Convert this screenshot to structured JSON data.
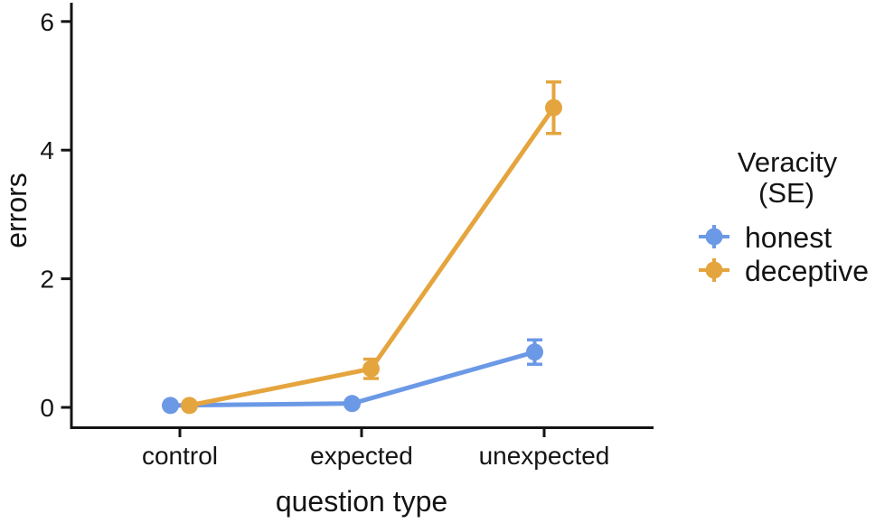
{
  "chart_data": {
    "type": "line",
    "title": "",
    "xlabel": "question type",
    "ylabel": "errors",
    "categories": [
      "control",
      "expected",
      "unexpected"
    ],
    "series": [
      {
        "name": "honest",
        "color": "#6B99E6",
        "values": [
          0.03,
          0.06,
          0.86
        ],
        "se": [
          0.02,
          0.04,
          0.19
        ]
      },
      {
        "name": "deceptive",
        "color": "#E5A53E",
        "values": [
          0.03,
          0.6,
          4.66
        ],
        "se": [
          0.02,
          0.15,
          0.4
        ]
      }
    ],
    "yticks": [
      0,
      2,
      4,
      6
    ],
    "ylim": [
      -0.3,
      6.3
    ],
    "grid": false,
    "error_bars": "SE",
    "legend": {
      "title": "Veracity",
      "subtitle": "(SE)",
      "position": "right"
    }
  },
  "colors": {
    "honest": "#6B99E6",
    "deceptive": "#E5A53E",
    "axis": "#141414",
    "background": "#FFFFFF"
  }
}
